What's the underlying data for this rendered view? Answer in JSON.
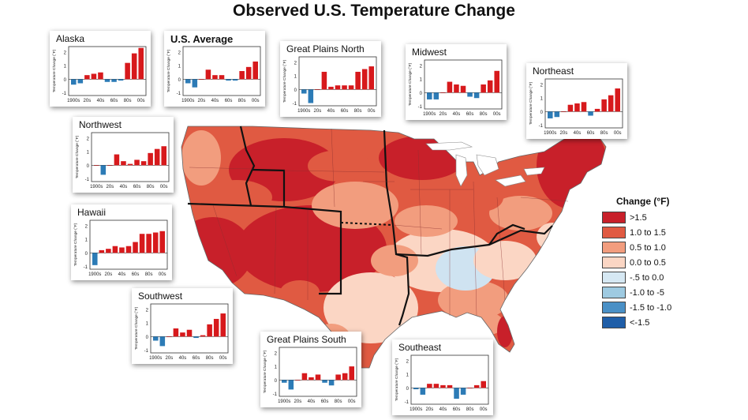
{
  "title": "Observed U.S. Temperature Change",
  "colors": {
    "warm_bar": "#d7191c",
    "cool_bar": "#2c7bb6",
    "map_gt15": "#c8202a",
    "map_10_15": "#e05a42",
    "map_05_10": "#f29d7e",
    "map_00_05": "#fbd6c4",
    "map_cool": "#cfe3f1"
  },
  "legend": {
    "title": "Change (°F)",
    "items": [
      {
        "label": ">1.5",
        "color": "#c8202a"
      },
      {
        "label": "1.0 to 1.5",
        "color": "#e05a42"
      },
      {
        "label": "0.5 to 1.0",
        "color": "#f29d7e"
      },
      {
        "label": "0.0 to 0.5",
        "color": "#fbd6c4"
      },
      {
        "label": "-.5 to 0.0",
        "color": "#d6e8f3"
      },
      {
        "label": "-1.0 to -5",
        "color": "#9ecae1"
      },
      {
        "label": "-1.5 to -1.0",
        "color": "#4a90c6"
      },
      {
        "label": "<-1.5",
        "color": "#1f5ea8"
      }
    ]
  },
  "panel_axis": {
    "ylabel": "Temperature Change (°F)",
    "yticks": [
      "2",
      "1",
      "0",
      "-1"
    ],
    "xticks": [
      "1900s",
      "20s",
      "40s",
      "60s",
      "80s",
      "00s"
    ],
    "ylim": [
      -1.2,
      2.4
    ]
  },
  "chart_data": [
    {
      "type": "bar",
      "title": "Alaska",
      "categories": [
        "1900s",
        "10s",
        "20s",
        "30s",
        "40s",
        "50s",
        "60s",
        "70s",
        "80s",
        "90s",
        "00s"
      ],
      "values": [
        -0.4,
        -0.3,
        0.3,
        0.4,
        0.5,
        -0.2,
        -0.2,
        -0.1,
        1.2,
        1.9,
        2.3
      ]
    },
    {
      "type": "bar",
      "title": "U.S. Average",
      "categories": [
        "1900s",
        "10s",
        "20s",
        "30s",
        "40s",
        "50s",
        "60s",
        "70s",
        "80s",
        "90s",
        "00s"
      ],
      "values": [
        -0.3,
        -0.6,
        0.0,
        0.7,
        0.3,
        0.3,
        -0.1,
        -0.1,
        0.6,
        0.9,
        1.3
      ]
    },
    {
      "type": "bar",
      "title": "Great Plains North",
      "categories": [
        "1900s",
        "10s",
        "20s",
        "30s",
        "40s",
        "50s",
        "60s",
        "70s",
        "80s",
        "90s",
        "00s"
      ],
      "values": [
        -0.3,
        -1.0,
        0.0,
        1.3,
        0.2,
        0.3,
        0.3,
        0.3,
        1.3,
        1.5,
        1.7
      ]
    },
    {
      "type": "bar",
      "title": "Midwest",
      "categories": [
        "1900s",
        "10s",
        "20s",
        "30s",
        "40s",
        "50s",
        "60s",
        "70s",
        "80s",
        "90s",
        "00s"
      ],
      "values": [
        -0.5,
        -0.5,
        0.0,
        0.8,
        0.6,
        0.5,
        -0.3,
        -0.4,
        0.6,
        0.9,
        1.6
      ]
    },
    {
      "type": "bar",
      "title": "Northeast",
      "categories": [
        "1900s",
        "10s",
        "20s",
        "30s",
        "40s",
        "50s",
        "60s",
        "70s",
        "80s",
        "90s",
        "00s"
      ],
      "values": [
        -0.5,
        -0.4,
        0.0,
        0.5,
        0.6,
        0.7,
        -0.3,
        0.2,
        0.9,
        1.2,
        1.7
      ]
    },
    {
      "type": "bar",
      "title": "Northwest",
      "categories": [
        "1900s",
        "10s",
        "20s",
        "30s",
        "40s",
        "50s",
        "60s",
        "70s",
        "80s",
        "90s",
        "00s"
      ],
      "values": [
        0.0,
        -0.7,
        0.0,
        0.8,
        0.3,
        0.1,
        0.4,
        0.3,
        0.9,
        1.2,
        1.4
      ]
    },
    {
      "type": "bar",
      "title": "Hawaii",
      "categories": [
        "1900s",
        "10s",
        "20s",
        "30s",
        "40s",
        "50s",
        "60s",
        "70s",
        "80s",
        "90s",
        "00s"
      ],
      "values": [
        -0.9,
        0.2,
        0.3,
        0.5,
        0.4,
        0.5,
        0.8,
        1.4,
        1.4,
        1.5,
        1.6
      ]
    },
    {
      "type": "bar",
      "title": "Southwest",
      "categories": [
        "1900s",
        "10s",
        "20s",
        "30s",
        "40s",
        "50s",
        "60s",
        "70s",
        "80s",
        "90s",
        "00s"
      ],
      "values": [
        -0.3,
        -0.7,
        0.0,
        0.6,
        0.3,
        0.5,
        -0.1,
        0.1,
        0.9,
        1.3,
        1.7
      ]
    },
    {
      "type": "bar",
      "title": "Great Plains South",
      "categories": [
        "1900s",
        "10s",
        "20s",
        "30s",
        "40s",
        "50s",
        "60s",
        "70s",
        "80s",
        "90s",
        "00s"
      ],
      "values": [
        -0.2,
        -0.7,
        0.0,
        0.5,
        0.2,
        0.4,
        -0.2,
        -0.4,
        0.4,
        0.5,
        1.0
      ]
    },
    {
      "type": "bar",
      "title": "Southeast",
      "categories": [
        "1900s",
        "10s",
        "20s",
        "30s",
        "40s",
        "50s",
        "60s",
        "70s",
        "80s",
        "90s",
        "00s"
      ],
      "values": [
        -0.1,
        -0.5,
        0.3,
        0.3,
        0.2,
        0.2,
        -0.8,
        -0.5,
        0.0,
        0.2,
        0.5
      ]
    }
  ]
}
